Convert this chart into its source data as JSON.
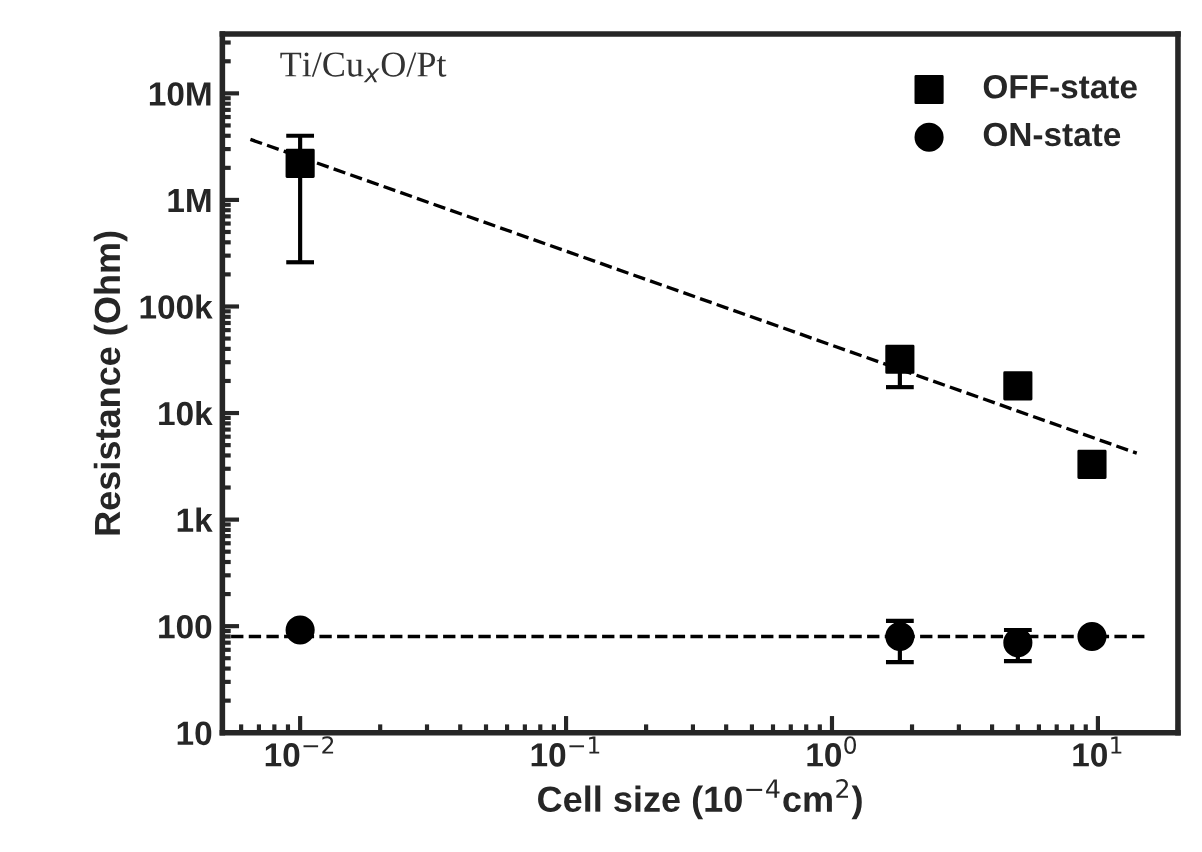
{
  "chart_data": {
    "type": "scatter",
    "xlabel": "Cell size (10$^{−4}$cm$^{2}$)",
    "ylabel": "Resistance (Ohm)",
    "log": "xy",
    "xlim": [
      0.0051,
      20
    ],
    "ylim": [
      10,
      36000000
    ],
    "xticks": [
      {
        "value": 0.01,
        "label": "10$^{−2}$"
      },
      {
        "value": 0.1,
        "label": "10$^{−1}$"
      },
      {
        "value": 1,
        "label": "10$^{0}$"
      },
      {
        "value": 10,
        "label": "10$^{1}$"
      }
    ],
    "yticks": [
      {
        "value": 10,
        "label": "10"
      },
      {
        "value": 100,
        "label": "100"
      },
      {
        "value": 1000,
        "label": "1k"
      },
      {
        "value": 10000,
        "label": "10k"
      },
      {
        "value": 100000,
        "label": "100k"
      },
      {
        "value": 1000000,
        "label": "1M"
      },
      {
        "value": 10000000,
        "label": "10M"
      }
    ],
    "grid": false,
    "legend": "top right",
    "annotations": [
      "Ti/Cu$_{x}$O/Pt"
    ],
    "series": [
      {
        "name": "OFF-state",
        "marker": "square",
        "color": "#000000",
        "x": [
          0.01,
          1.8,
          5,
          9.5
        ],
        "values": [
          2200000,
          32000,
          18000,
          3300
        ],
        "errors": [
          [
            260000,
            4000000
          ],
          [
            17500,
            32000
          ],
          null,
          null
        ]
      },
      {
        "name": "ON-state",
        "marker": "circle",
        "color": "#000000",
        "x": [
          0.01,
          1.8,
          5,
          9.5
        ],
        "values": [
          92,
          80,
          70,
          80
        ],
        "errors": [
          null,
          [
            46,
            112
          ],
          [
            47,
            92
          ],
          null
        ]
      },
      {
        "type": "line",
        "line_style": "dashed",
        "color": "#000000",
        "x": [
          0.0065,
          14
        ],
        "values": [
          3700000,
          4200
        ]
      },
      {
        "type": "line",
        "line_style": "dashed",
        "color": "#000000",
        "x": [
          0.0055,
          15
        ],
        "values": [
          80,
          80
        ]
      }
    ]
  }
}
